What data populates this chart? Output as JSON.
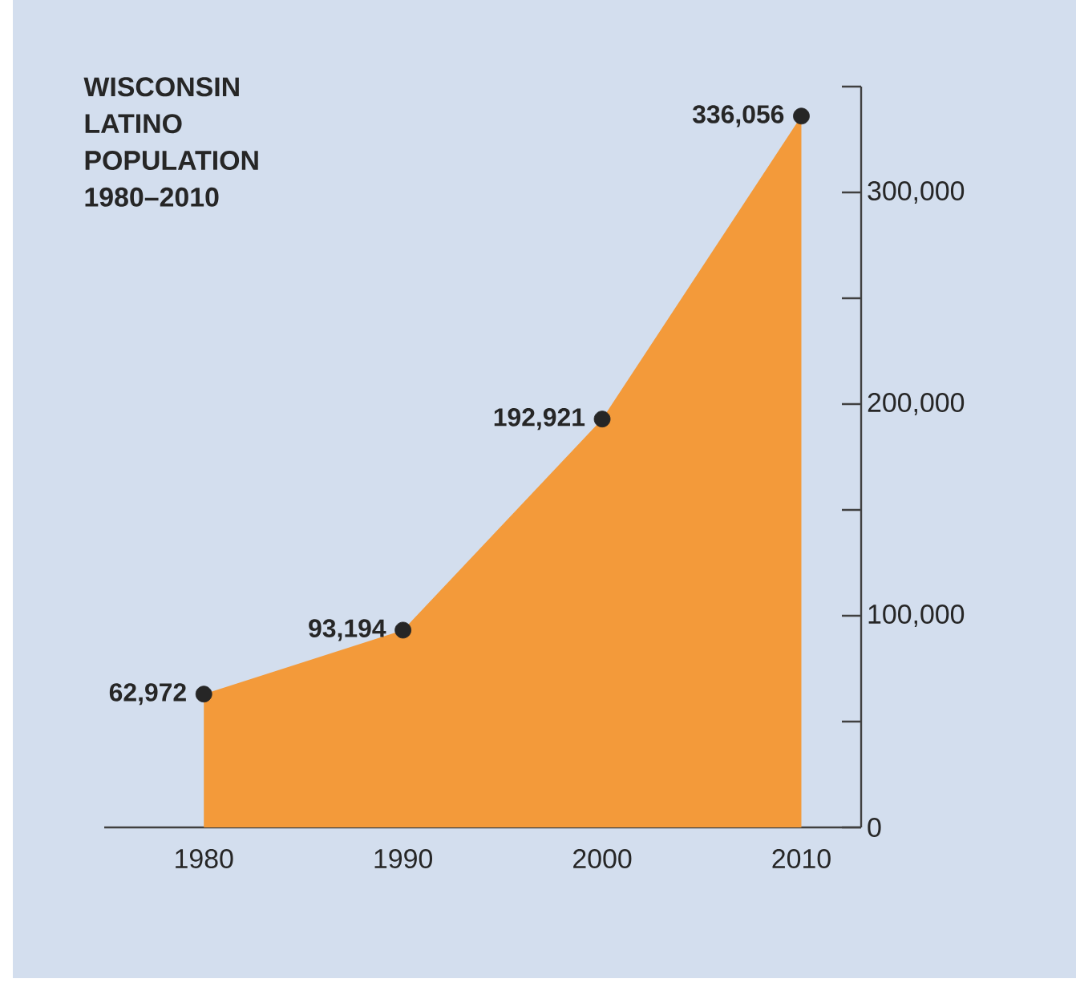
{
  "chart_data": {
    "type": "area",
    "title": "WISCONSIN LATINO POPULATION 1980–2010",
    "x": [
      1980,
      1990,
      2000,
      2010
    ],
    "series": [
      {
        "color": "#f39a3a",
        "values": [
          62972,
          93194,
          192921,
          336056
        ],
        "value_labels": [
          "62,972",
          "93,194",
          "192,921",
          "336,056"
        ]
      }
    ],
    "xlim": [
      1975,
      2013
    ],
    "ylim": [
      0,
      350000
    ],
    "xticks": [
      1980,
      1990,
      2000,
      2010
    ],
    "yticks": [
      0,
      {
        "value": 50000,
        "label": null
      },
      {
        "value": 100000,
        "label": "100,000"
      },
      {
        "value": 150000,
        "label": null
      },
      {
        "value": 200000,
        "label": "200,000"
      },
      {
        "value": 250000,
        "label": null
      },
      {
        "value": 300000,
        "label": "300,000"
      },
      {
        "value": 350000,
        "label": null
      }
    ],
    "marker": "circle"
  }
}
